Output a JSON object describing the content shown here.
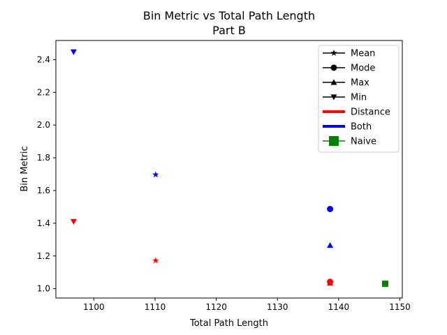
{
  "chart_data": {
    "type": "scatter",
    "title": "Bin Metric vs Total Path Length",
    "subtitle": "Part B",
    "xlabel": "Total Path Length",
    "ylabel": "Bin Metric",
    "xlim": [
      1093.8,
      1150.4
    ],
    "ylim": [
      0.943,
      2.517
    ],
    "xticks": [
      1100,
      1110,
      1120,
      1130,
      1140,
      1150
    ],
    "yticks": [
      1.0,
      1.2,
      1.4,
      1.6,
      1.8,
      2.0,
      2.2,
      2.4
    ],
    "xtick_labels": [
      "1100",
      "1110",
      "1120",
      "1130",
      "1140",
      "1150"
    ],
    "ytick_labels": [
      "1.0",
      "1.2",
      "1.4",
      "1.6",
      "1.8",
      "2.0",
      "2.2",
      "2.4"
    ],
    "grid": false,
    "legend_position": "top-right",
    "legend": [
      {
        "label": "Mean",
        "kind": "marker",
        "marker": "star",
        "color": "#000000"
      },
      {
        "label": "Mode",
        "kind": "marker",
        "marker": "circle",
        "color": "#000000"
      },
      {
        "label": "Max",
        "kind": "marker",
        "marker": "triangle-up",
        "color": "#000000"
      },
      {
        "label": "Min",
        "kind": "marker",
        "marker": "triangle-down",
        "color": "#000000"
      },
      {
        "label": "Distance",
        "kind": "line",
        "color": "#ff0000"
      },
      {
        "label": "Both",
        "kind": "line",
        "color": "#0000ff"
      },
      {
        "label": "Naive",
        "kind": "marker",
        "marker": "square",
        "color": "#008000"
      }
    ],
    "points": [
      {
        "x": 1096.7,
        "y": 2.447,
        "marker": "triangle-down",
        "color": "#0000ff"
      },
      {
        "x": 1096.7,
        "y": 1.41,
        "marker": "triangle-down",
        "color": "#ff0000"
      },
      {
        "x": 1110.1,
        "y": 1.697,
        "marker": "star",
        "color": "#0000ff"
      },
      {
        "x": 1110.1,
        "y": 1.172,
        "marker": "star",
        "color": "#ff0000"
      },
      {
        "x": 1138.6,
        "y": 1.487,
        "marker": "circle",
        "color": "#0000ff"
      },
      {
        "x": 1138.6,
        "y": 1.265,
        "marker": "triangle-up",
        "color": "#0000ff"
      },
      {
        "x": 1138.6,
        "y": 1.042,
        "marker": "circle",
        "color": "#ff0000"
      },
      {
        "x": 1138.6,
        "y": 1.035,
        "marker": "triangle-up",
        "color": "#ff0000"
      },
      {
        "x": 1147.6,
        "y": 1.03,
        "marker": "square",
        "color": "#008000"
      }
    ]
  }
}
